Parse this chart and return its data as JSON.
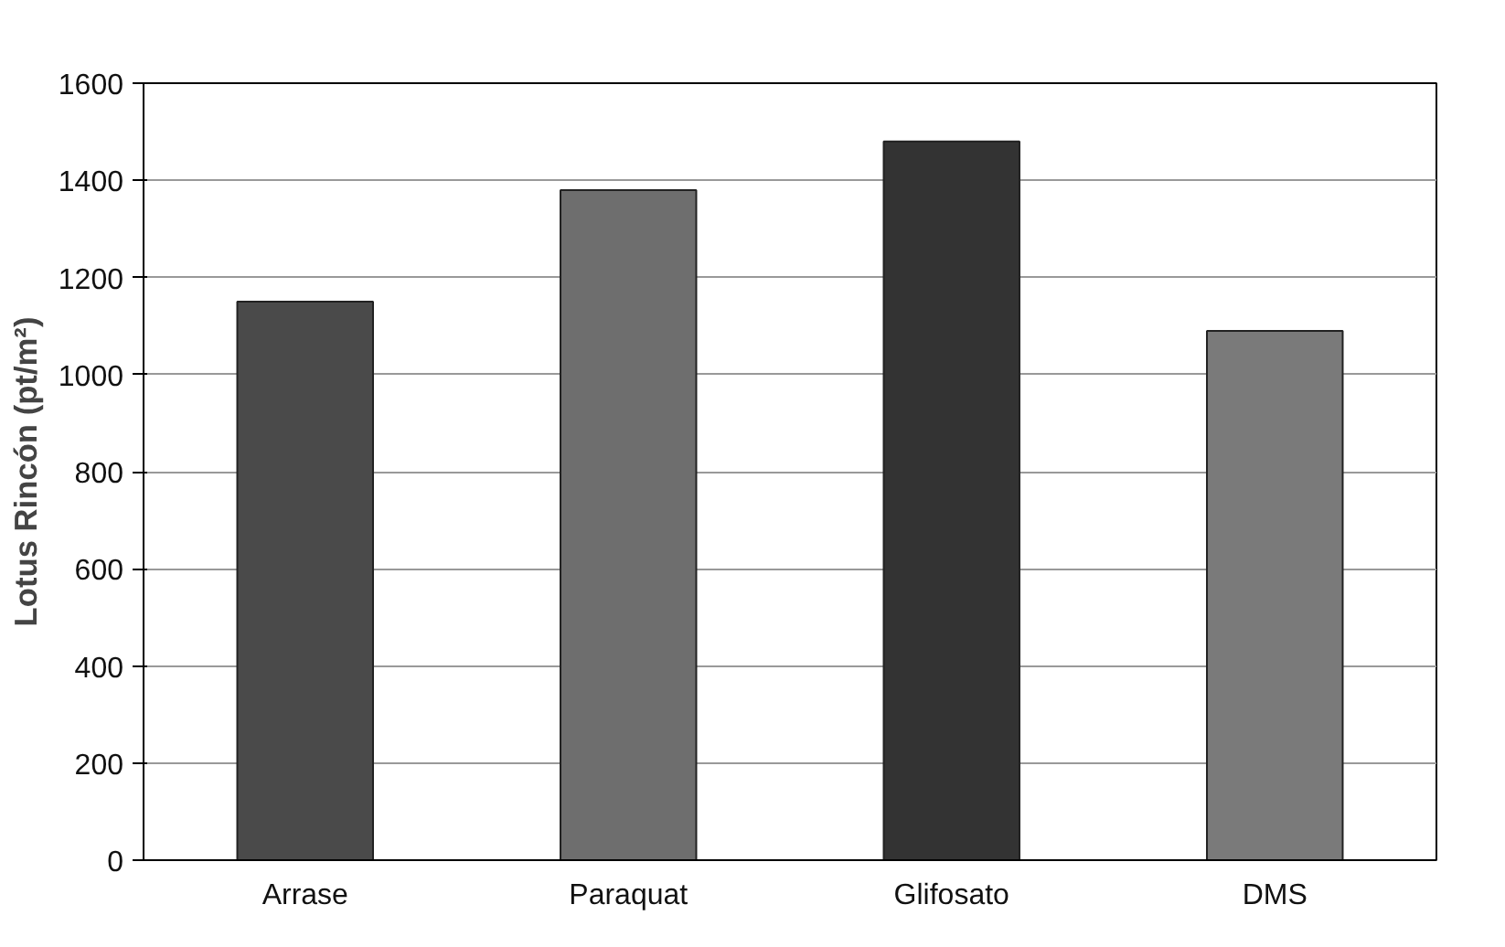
{
  "chart_data": {
    "type": "bar",
    "ylabel": "Lotus Rincón (pt/m²)",
    "categories": [
      "Arrase",
      "Paraquat",
      "Glifosato",
      "DMS"
    ],
    "values": [
      1150,
      1380,
      1480,
      1090
    ],
    "colors": [
      "#4a4a4a",
      "#6e6e6e",
      "#333333",
      "#7a7a7a"
    ],
    "ylim": [
      0,
      1600
    ],
    "yticks": [
      0,
      200,
      400,
      600,
      800,
      1000,
      1200,
      1400,
      1600
    ],
    "grid": "y"
  }
}
